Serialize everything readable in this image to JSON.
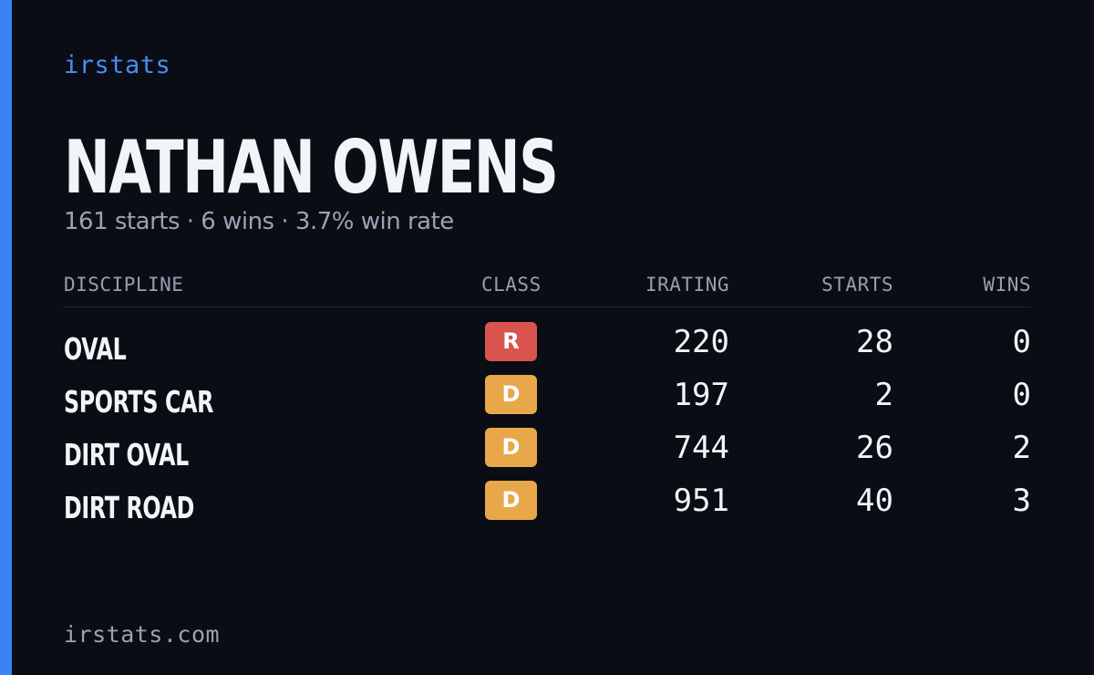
{
  "brand": "irstats",
  "player": {
    "name": "NATHAN OWENS",
    "summary": "161 starts · 6 wins · 3.7% win rate"
  },
  "table": {
    "headers": {
      "discipline": "DISCIPLINE",
      "class": "CLASS",
      "irating": "IRATING",
      "starts": "STARTS",
      "wins": "WINS"
    },
    "rows": [
      {
        "discipline": "OVAL",
        "class": "R",
        "irating": "220",
        "starts": "28",
        "wins": "0"
      },
      {
        "discipline": "SPORTS CAR",
        "class": "D",
        "irating": "197",
        "starts": "2",
        "wins": "0"
      },
      {
        "discipline": "DIRT OVAL",
        "class": "D",
        "irating": "744",
        "starts": "26",
        "wins": "2"
      },
      {
        "discipline": "DIRT ROAD",
        "class": "D",
        "irating": "951",
        "starts": "40",
        "wins": "3"
      }
    ]
  },
  "colors": {
    "accent": "#3b82f6",
    "class_r": "#d9534f",
    "class_d": "#e8a84a"
  },
  "footer": "irstats.com"
}
